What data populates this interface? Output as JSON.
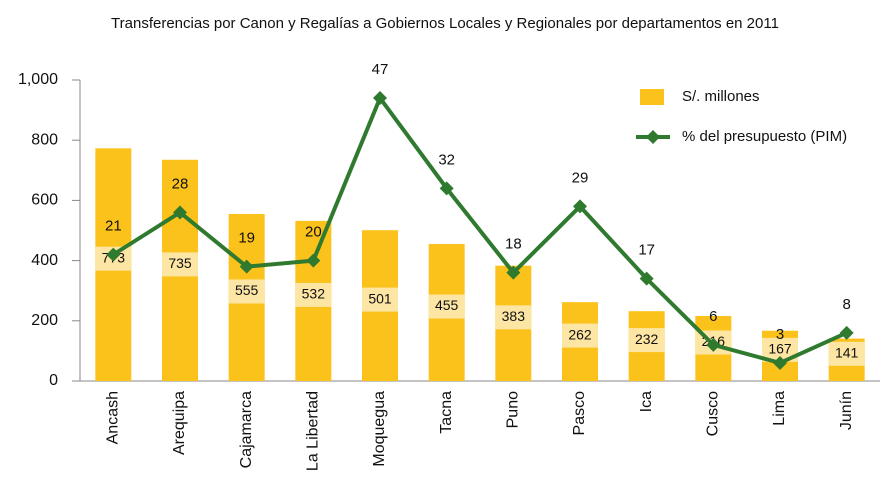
{
  "chart_data": {
    "type": "bar_line",
    "title": "Transferencias por Canon y Regalías a Gobiernos Locales y Regionales por departamentos en 2011",
    "categories": [
      "Ancash",
      "Arequipa",
      "Cajamarca",
      "La Libertad",
      "Moquegua",
      "Tacna",
      "Puno",
      "Pasco",
      "Ica",
      "Cusco",
      "Lima",
      "Junín"
    ],
    "series": [
      {
        "name": "S/. millones",
        "type": "bar",
        "color": "#fbc21b",
        "values": [
          773,
          735,
          555,
          532,
          501,
          455,
          383,
          262,
          232,
          216,
          167,
          141
        ]
      },
      {
        "name": "% del presupuesto (PIM)",
        "type": "line",
        "axis": "y2",
        "color": "#2f7a2f",
        "values": [
          21,
          28,
          19,
          20,
          47,
          32,
          18,
          29,
          17,
          6,
          3,
          8
        ]
      }
    ],
    "ylim": [
      0,
      1000
    ],
    "yticks": [
      0,
      200,
      400,
      600,
      800,
      {
        "value": 1000,
        "label": "1,000"
      }
    ],
    "y2lim": [
      0,
      50
    ],
    "legend": "top-right"
  }
}
